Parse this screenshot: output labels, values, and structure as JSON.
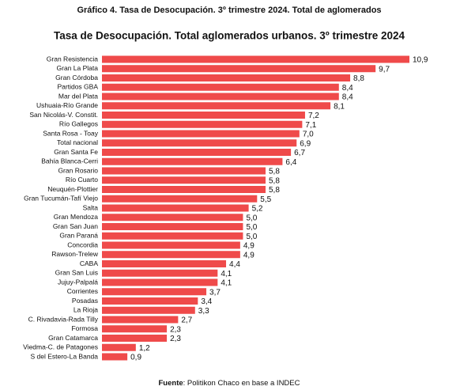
{
  "chart_data": {
    "type": "bar",
    "orientation": "horizontal",
    "figure_caption": "Gráfico 4. Tasa de Desocupación. 3º trimestre 2024. Total de aglomerados",
    "title": "Tasa de Desocupación. Total aglomerados urbanos. 3º trimestre 2024",
    "categories": [
      "Gran Resistencia",
      "Gran La Plata",
      "Gran Córdoba",
      "Partidos GBA",
      "Mar del Plata",
      "Ushuaia-Río Grande",
      "San Nicolás-V. Constit.",
      "Río Gallegos",
      "Santa Rosa - Toay",
      "Total nacional",
      "Gran Santa Fe",
      "Bahía Blanca-Cerri",
      "Gran Rosario",
      "Río Cuarto",
      "Neuquén-Plottier",
      "Gran Tucumán-Tafí Viejo",
      "Salta",
      "Gran Mendoza",
      "Gran San Juan",
      "Gran Paraná",
      "Concordia",
      "Rawson-Trelew",
      "CABA",
      "Gran San Luis",
      "Jujuy-Palpalá",
      "Corrientes",
      "Posadas",
      "La Rioja",
      "C. Rivadavia-Rada Tilly",
      "Formosa",
      "Gran Catamarca",
      "Viedma-C. de Patagones",
      "S del Estero-La Banda"
    ],
    "values": [
      10.9,
      9.7,
      8.8,
      8.4,
      8.4,
      8.1,
      7.2,
      7.1,
      7.0,
      6.9,
      6.7,
      6.4,
      5.8,
      5.8,
      5.8,
      5.5,
      5.2,
      5.0,
      5.0,
      5.0,
      4.9,
      4.9,
      4.4,
      4.1,
      4.1,
      3.7,
      3.4,
      3.3,
      2.7,
      2.3,
      2.3,
      1.2,
      0.9
    ],
    "value_labels": [
      "10,9",
      "9,7",
      "8,8",
      "8,4",
      "8,4",
      "8,1",
      "7,2",
      "7,1",
      "7,0",
      "6,9",
      "6,7",
      "6,4",
      "5,8",
      "5,8",
      "5,8",
      "5,5",
      "5,2",
      "5,0",
      "5,0",
      "5,0",
      "4,9",
      "4,9",
      "4,4",
      "4,1",
      "4,1",
      "3,7",
      "3,4",
      "3,3",
      "2,7",
      "2,3",
      "2,3",
      "1,2",
      "0,9"
    ],
    "color": "#ef4a4a",
    "source_label": "Fuente",
    "source": ": Politikon Chaco en base a INDEC"
  }
}
